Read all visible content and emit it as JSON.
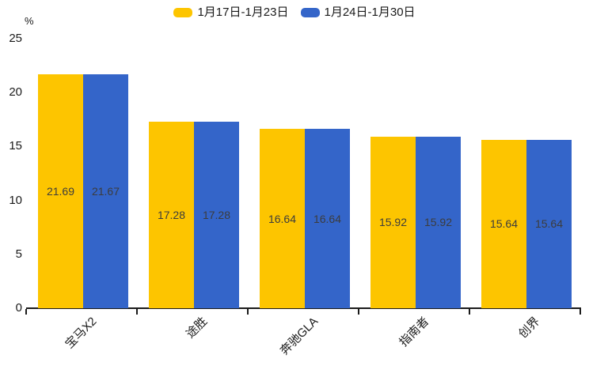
{
  "chart_data": {
    "type": "bar",
    "title": "",
    "ylabel": "%",
    "ylim": [
      0,
      25
    ],
    "yticks": [
      0,
      5,
      10,
      15,
      20,
      25
    ],
    "categories": [
      "宝马X2",
      "途胜",
      "奔驰GLA",
      "指南者",
      "创界"
    ],
    "series": [
      {
        "name": "1月17日-1月23日",
        "color": "#FDC500",
        "values": [
          21.69,
          17.28,
          16.64,
          15.92,
          15.64
        ]
      },
      {
        "name": "1月24日-1月30日",
        "color": "#3465C9",
        "values": [
          21.67,
          17.28,
          16.64,
          15.92,
          15.64
        ]
      }
    ],
    "legend_position": "top-center",
    "grid": false,
    "value_labels": "inside-center",
    "value_label_format": "2-decimals",
    "x_label_rotation_deg": 45,
    "axis_color": "#1a1a1a",
    "value_label_color": "#3c3c3c"
  }
}
